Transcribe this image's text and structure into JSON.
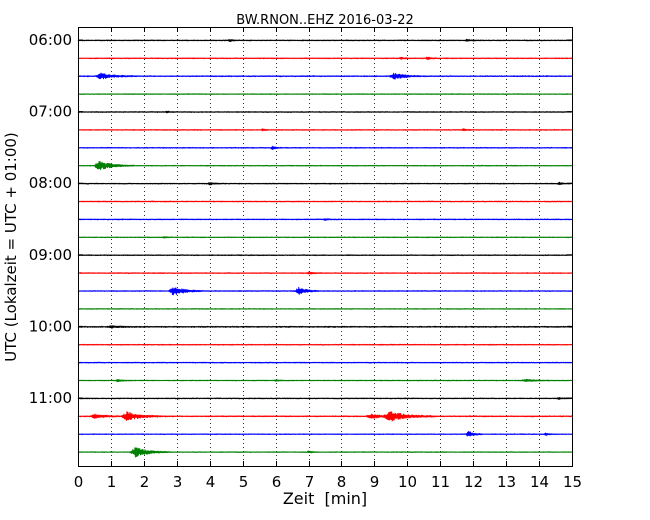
{
  "chart_data": {
    "type": "line",
    "title": "BW.RNON..EHZ 2016-03-22",
    "xlabel": "Zeit  [min]",
    "ylabel": "UTC (Lokalzeit = UTC + 01:00)",
    "xlim": [
      0,
      15
    ],
    "x_ticks": [
      "0",
      "1",
      "2",
      "3",
      "4",
      "5",
      "6",
      "7",
      "8",
      "9",
      "10",
      "11",
      "12",
      "13",
      "14",
      "15"
    ],
    "y_tick_labels": [
      "06:00",
      "07:00",
      "08:00",
      "09:00",
      "10:00",
      "11:00"
    ],
    "grid": "vertical dotted",
    "trace_interval_min": 15,
    "series": [
      {
        "start": "06:00",
        "color": "#000000",
        "noise": 0.35,
        "events": [
          {
            "t": 11.8,
            "amp": 1.2,
            "dur": 0.1
          },
          {
            "t": 4.6,
            "amp": 0.9,
            "dur": 0.1
          }
        ]
      },
      {
        "start": "06:15",
        "color": "#ff0000",
        "noise": 0.35,
        "events": [
          {
            "t": 10.6,
            "amp": 1.4,
            "dur": 0.1
          },
          {
            "t": 9.8,
            "amp": 0.9,
            "dur": 0.1
          }
        ]
      },
      {
        "start": "06:30",
        "color": "#0000ff",
        "noise": 0.4,
        "events": [
          {
            "t": 0.7,
            "amp": 2.8,
            "dur": 0.35
          },
          {
            "t": 9.6,
            "amp": 3.0,
            "dur": 0.3
          }
        ]
      },
      {
        "start": "06:45",
        "color": "#008000",
        "noise": 0.3,
        "events": []
      },
      {
        "start": "07:00",
        "color": "#000000",
        "noise": 0.35,
        "events": [
          {
            "t": 2.7,
            "amp": 0.9,
            "dur": 0.1
          }
        ]
      },
      {
        "start": "07:15",
        "color": "#ff0000",
        "noise": 0.35,
        "events": [
          {
            "t": 11.7,
            "amp": 1.3,
            "dur": 0.08
          },
          {
            "t": 5.6,
            "amp": 0.9,
            "dur": 0.1
          }
        ]
      },
      {
        "start": "07:30",
        "color": "#0000ff",
        "noise": 0.35,
        "events": [
          {
            "t": 5.9,
            "amp": 1.6,
            "dur": 0.1
          }
        ]
      },
      {
        "start": "07:45",
        "color": "#008000",
        "noise": 0.3,
        "events": [
          {
            "t": 0.65,
            "amp": 4.2,
            "dur": 0.35
          }
        ]
      },
      {
        "start": "08:00",
        "color": "#000000",
        "noise": 0.35,
        "events": [
          {
            "t": 4.0,
            "amp": 1.2,
            "dur": 0.12
          },
          {
            "t": 14.6,
            "amp": 1.5,
            "dur": 0.08
          }
        ]
      },
      {
        "start": "08:15",
        "color": "#ff0000",
        "noise": 0.35,
        "events": []
      },
      {
        "start": "08:30",
        "color": "#0000ff",
        "noise": 0.35,
        "events": [
          {
            "t": 7.5,
            "amp": 0.8,
            "dur": 0.1
          }
        ]
      },
      {
        "start": "08:45",
        "color": "#008000",
        "noise": 0.3,
        "events": [
          {
            "t": 2.6,
            "amp": 0.8,
            "dur": 0.1
          }
        ]
      },
      {
        "start": "09:00",
        "color": "#000000",
        "noise": 0.35,
        "events": []
      },
      {
        "start": "09:15",
        "color": "#ff0000",
        "noise": 0.35,
        "events": [
          {
            "t": 7.0,
            "amp": 1.0,
            "dur": 0.15
          }
        ]
      },
      {
        "start": "09:30",
        "color": "#0000ff",
        "noise": 0.35,
        "events": [
          {
            "t": 2.9,
            "amp": 4.2,
            "dur": 0.3
          },
          {
            "t": 6.7,
            "amp": 3.8,
            "dur": 0.2
          }
        ]
      },
      {
        "start": "09:45",
        "color": "#008000",
        "noise": 0.3,
        "events": []
      },
      {
        "start": "10:00",
        "color": "#000000",
        "noise": 0.45,
        "events": [
          {
            "t": 1.0,
            "amp": 0.9,
            "dur": 0.3
          }
        ]
      },
      {
        "start": "10:15",
        "color": "#ff0000",
        "noise": 0.35,
        "events": []
      },
      {
        "start": "10:30",
        "color": "#0000ff",
        "noise": 0.35,
        "events": []
      },
      {
        "start": "10:45",
        "color": "#008000",
        "noise": 0.3,
        "events": [
          {
            "t": 1.2,
            "amp": 0.9,
            "dur": 0.15
          },
          {
            "t": 6.0,
            "amp": 0.8,
            "dur": 0.1
          },
          {
            "t": 13.6,
            "amp": 1.0,
            "dur": 0.3
          }
        ]
      },
      {
        "start": "11:00",
        "color": "#000000",
        "noise": 0.35,
        "events": [
          {
            "t": 14.6,
            "amp": 0.9,
            "dur": 0.1
          }
        ]
      },
      {
        "start": "11:15",
        "color": "#ff0000",
        "noise": 0.4,
        "events": [
          {
            "t": 0.5,
            "amp": 1.8,
            "dur": 0.3
          },
          {
            "t": 1.5,
            "amp": 4.5,
            "dur": 0.35
          },
          {
            "t": 8.9,
            "amp": 2.2,
            "dur": 0.3
          },
          {
            "t": 9.5,
            "amp": 4.8,
            "dur": 0.45
          }
        ]
      },
      {
        "start": "11:30",
        "color": "#0000ff",
        "noise": 0.3,
        "events": [
          {
            "t": 11.85,
            "amp": 3.2,
            "dur": 0.15
          },
          {
            "t": 14.2,
            "amp": 1.1,
            "dur": 0.1
          }
        ]
      },
      {
        "start": "11:45",
        "color": "#008000",
        "noise": 0.3,
        "events": [
          {
            "t": 1.75,
            "amp": 4.8,
            "dur": 0.35
          },
          {
            "t": 7.0,
            "amp": 1.0,
            "dur": 0.1
          }
        ]
      }
    ]
  }
}
